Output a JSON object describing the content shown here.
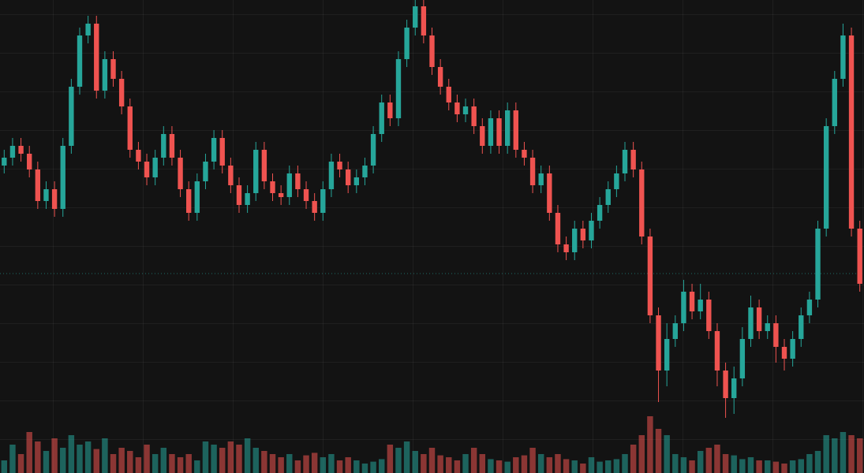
{
  "chart_data": {
    "type": "candlestick",
    "up_color": "#26a69a",
    "down_color": "#ef5350",
    "ylim": [
      0,
      600
    ],
    "volume_ylim": [
      0,
      150
    ],
    "open": [
      390,
      400,
      415,
      405,
      385,
      345,
      360,
      335,
      415,
      490,
      555,
      570,
      485,
      525,
      500,
      465,
      410,
      395,
      375,
      400,
      430,
      400,
      360,
      330,
      370,
      395,
      425,
      390,
      365,
      340,
      355,
      410,
      370,
      355,
      350,
      380,
      360,
      345,
      330,
      360,
      395,
      385,
      365,
      375,
      390,
      430,
      470,
      450,
      525,
      565,
      592,
      555,
      515,
      490,
      470,
      455,
      465,
      440,
      415,
      450,
      415,
      460,
      410,
      400,
      365,
      380,
      330,
      290,
      280,
      310,
      295,
      320,
      340,
      360,
      380,
      410,
      385,
      300,
      200,
      130,
      170,
      190,
      230,
      205,
      220,
      180,
      130,
      95,
      120,
      170,
      210,
      180,
      190,
      160,
      145,
      170,
      200,
      220,
      310,
      440,
      500,
      555,
      310
    ],
    "high": [
      410,
      425,
      425,
      415,
      395,
      370,
      370,
      425,
      500,
      565,
      580,
      580,
      535,
      535,
      510,
      475,
      420,
      405,
      410,
      440,
      440,
      410,
      370,
      380,
      405,
      435,
      435,
      400,
      375,
      365,
      420,
      420,
      380,
      365,
      390,
      390,
      370,
      355,
      370,
      405,
      405,
      395,
      385,
      400,
      440,
      480,
      480,
      535,
      575,
      600,
      600,
      565,
      525,
      500,
      480,
      475,
      475,
      450,
      460,
      460,
      470,
      470,
      420,
      410,
      390,
      390,
      340,
      300,
      320,
      320,
      330,
      350,
      370,
      390,
      420,
      420,
      395,
      310,
      210,
      190,
      200,
      245,
      240,
      240,
      230,
      190,
      140,
      135,
      185,
      225,
      220,
      200,
      200,
      170,
      180,
      210,
      230,
      320,
      450,
      510,
      570,
      565,
      320
    ],
    "low": [
      380,
      390,
      395,
      375,
      335,
      335,
      325,
      325,
      405,
      480,
      545,
      475,
      475,
      490,
      455,
      400,
      385,
      365,
      365,
      390,
      390,
      350,
      320,
      320,
      360,
      385,
      380,
      355,
      330,
      330,
      345,
      360,
      345,
      340,
      340,
      350,
      335,
      320,
      320,
      350,
      375,
      355,
      355,
      365,
      380,
      420,
      440,
      440,
      515,
      555,
      545,
      505,
      480,
      460,
      445,
      445,
      430,
      405,
      405,
      405,
      405,
      400,
      390,
      355,
      355,
      320,
      280,
      270,
      270,
      285,
      285,
      310,
      330,
      350,
      370,
      375,
      290,
      190,
      90,
      110,
      160,
      180,
      195,
      195,
      170,
      110,
      70,
      75,
      110,
      160,
      170,
      170,
      140,
      130,
      135,
      160,
      190,
      210,
      300,
      430,
      490,
      300,
      230
    ],
    "close": [
      400,
      415,
      405,
      385,
      345,
      360,
      335,
      415,
      490,
      555,
      570,
      485,
      525,
      500,
      465,
      410,
      395,
      375,
      400,
      430,
      400,
      360,
      330,
      370,
      395,
      425,
      390,
      365,
      340,
      355,
      410,
      370,
      355,
      350,
      380,
      360,
      345,
      330,
      360,
      395,
      385,
      365,
      375,
      390,
      430,
      470,
      450,
      525,
      565,
      592,
      555,
      515,
      490,
      470,
      455,
      465,
      440,
      415,
      450,
      415,
      460,
      410,
      400,
      365,
      380,
      330,
      290,
      280,
      310,
      295,
      320,
      340,
      360,
      380,
      410,
      385,
      300,
      200,
      130,
      170,
      190,
      230,
      205,
      220,
      180,
      130,
      95,
      120,
      170,
      210,
      180,
      190,
      160,
      145,
      170,
      200,
      220,
      310,
      440,
      500,
      555,
      310,
      240
    ],
    "volume": [
      20,
      45,
      30,
      65,
      50,
      35,
      55,
      40,
      60,
      45,
      50,
      38,
      55,
      30,
      40,
      35,
      25,
      45,
      30,
      40,
      30,
      25,
      30,
      20,
      50,
      45,
      40,
      50,
      45,
      55,
      40,
      35,
      30,
      25,
      30,
      20,
      28,
      32,
      25,
      30,
      20,
      25,
      20,
      15,
      18,
      22,
      45,
      40,
      50,
      35,
      30,
      40,
      28,
      25,
      20,
      30,
      40,
      30,
      22,
      20,
      18,
      25,
      28,
      40,
      30,
      25,
      30,
      22,
      20,
      15,
      25,
      18,
      20,
      22,
      30,
      45,
      60,
      90,
      70,
      60,
      30,
      25,
      20,
      35,
      40,
      45,
      30,
      28,
      22,
      25,
      20,
      20,
      18,
      15,
      20,
      22,
      30,
      35,
      60,
      55,
      65,
      60,
      55
    ]
  }
}
